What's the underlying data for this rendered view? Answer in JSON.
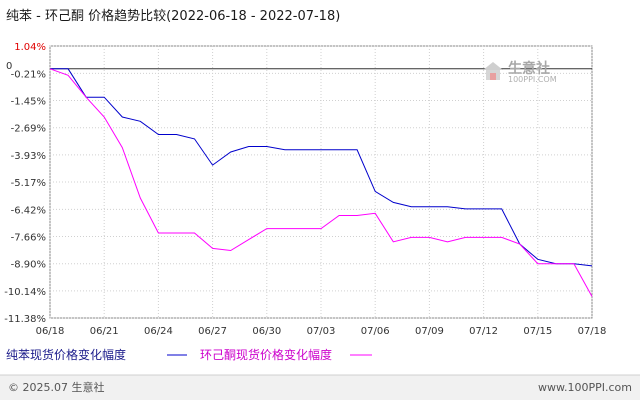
{
  "chart_data": {
    "type": "line",
    "title": "纯苯 - 环己酮 价格趋势比较",
    "date_range": "(2022-06-18 - 2022-07-18)",
    "x_ticks": [
      "06/18",
      "06/21",
      "06/24",
      "06/27",
      "06/30",
      "07/03",
      "07/06",
      "07/09",
      "07/12",
      "07/15",
      "07/18"
    ],
    "y_ticks": [
      "1.04%",
      "-0.21%",
      "-1.45%",
      "-2.69%",
      "-3.93%",
      "-5.17%",
      "-6.42%",
      "-7.66%",
      "-8.90%",
      "-10.14%",
      "-11.38%"
    ],
    "y_tick_values": [
      1.04,
      -0.21,
      -1.45,
      -2.69,
      -3.93,
      -5.17,
      -6.42,
      -7.66,
      -8.9,
      -10.14,
      -11.38
    ],
    "zero_label": "0",
    "ylim": [
      -11.38,
      1.04
    ],
    "grid": true,
    "legend_position": "bottom",
    "series": [
      {
        "name": "纯苯现货价格变化幅度",
        "color": "#0000cc",
        "x": [
          "06/18",
          "06/19",
          "06/20",
          "06/21",
          "06/22",
          "06/23",
          "06/24",
          "06/25",
          "06/26",
          "06/27",
          "06/28",
          "06/29",
          "06/30",
          "07/01",
          "07/02",
          "07/03",
          "07/04",
          "07/05",
          "07/06",
          "07/07",
          "07/08",
          "07/09",
          "07/10",
          "07/11",
          "07/12",
          "07/13",
          "07/14",
          "07/15",
          "07/16",
          "07/17",
          "07/18"
        ],
        "y": [
          0,
          0,
          -1.3,
          -1.3,
          -2.2,
          -2.4,
          -3.0,
          -3.0,
          -3.2,
          -4.4,
          -3.8,
          -3.55,
          -3.55,
          -3.7,
          -3.7,
          -3.7,
          -3.7,
          -3.7,
          -5.6,
          -6.1,
          -6.3,
          -6.3,
          -6.3,
          -6.4,
          -6.4,
          -6.4,
          -8.0,
          -8.7,
          -8.9,
          -8.9,
          -9.0
        ]
      },
      {
        "name": "环己酮现货价格变化幅度",
        "color": "#ff00ff",
        "x": [
          "06/18",
          "06/19",
          "06/20",
          "06/21",
          "06/22",
          "06/23",
          "06/24",
          "06/25",
          "06/26",
          "06/27",
          "06/28",
          "06/29",
          "06/30",
          "07/01",
          "07/02",
          "07/03",
          "07/04",
          "07/05",
          "07/06",
          "07/07",
          "07/08",
          "07/09",
          "07/10",
          "07/11",
          "07/12",
          "07/13",
          "07/14",
          "07/15",
          "07/16",
          "07/17",
          "07/18"
        ],
        "y": [
          0,
          -0.3,
          -1.3,
          -2.2,
          -3.6,
          -5.9,
          -7.5,
          -7.5,
          -7.5,
          -8.2,
          -8.3,
          -7.8,
          -7.3,
          -7.3,
          -7.3,
          -7.3,
          -6.7,
          -6.7,
          -6.6,
          -7.9,
          -7.7,
          -7.7,
          -7.9,
          -7.7,
          -7.7,
          -7.7,
          -8.0,
          -8.9,
          -8.9,
          -8.9,
          -10.4
        ]
      }
    ]
  },
  "watermark": {
    "brand": "生意社",
    "url": "100PPI.COM"
  },
  "footer": {
    "left": "© 2025.07 生意社",
    "right": "www.100PPI.com"
  }
}
